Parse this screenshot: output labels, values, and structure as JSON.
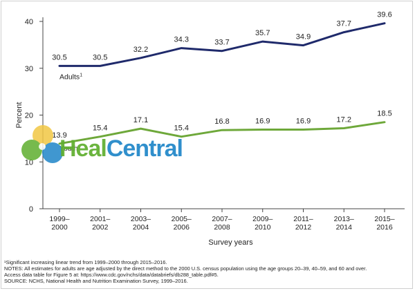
{
  "chart_data": {
    "type": "line",
    "title": "",
    "xlabel": "Survey years",
    "ylabel": "Percent",
    "ylim": [
      0,
      40
    ],
    "yticks": [
      0,
      10,
      20,
      30,
      40
    ],
    "categories": [
      [
        "1999–",
        "2000"
      ],
      [
        "2001–",
        "2002"
      ],
      [
        "2003–",
        "2004"
      ],
      [
        "2005–",
        "2006"
      ],
      [
        "2007–",
        "2008"
      ],
      [
        "2009–",
        "2010"
      ],
      [
        "2011–",
        "2012"
      ],
      [
        "2013–",
        "2014"
      ],
      [
        "2015–",
        "2016"
      ]
    ],
    "series": [
      {
        "name": "Adults",
        "name_superscript": "1",
        "color": "#1f2a6b",
        "values": [
          30.5,
          30.5,
          32.2,
          34.3,
          33.7,
          35.7,
          34.9,
          37.7,
          39.6
        ],
        "labels": [
          "30.5",
          "30.5",
          "32.2",
          "34.3",
          "33.7",
          "35.7",
          "34.9",
          "37.7",
          "39.6"
        ]
      },
      {
        "name": "Youth",
        "color": "#6ea83a",
        "values": [
          13.9,
          15.4,
          17.1,
          15.4,
          16.8,
          16.9,
          16.9,
          17.2,
          18.5
        ],
        "labels": [
          "13.9",
          "15.4",
          "17.1",
          "15.4",
          "16.8",
          "16.9",
          "16.9",
          "17.2",
          "18.5"
        ]
      }
    ]
  },
  "notes": {
    "footnote": "¹Significant increasing linear trend from 1999–2000 through 2015–2016.",
    "notes_line1": "NOTES: All estimates for adults are age adjusted by the direct method to the 2000 U.S. census population using the age groups 20–39, 40–59, and 60 and over.",
    "notes_line2": "Access data table for Figure 5 at: https://www.cdc.gov/nchs/data/databriefs/db288_table.pdf#5.",
    "source": "SOURCE: NCHS, National Health and Nutrition Examination Survey, 1999–2016."
  },
  "watermark": {
    "text_part1": "Heal",
    "text_part2": "Central",
    "colors": [
      "#5fae2e",
      "#1f86c8",
      "#f2c744"
    ]
  }
}
